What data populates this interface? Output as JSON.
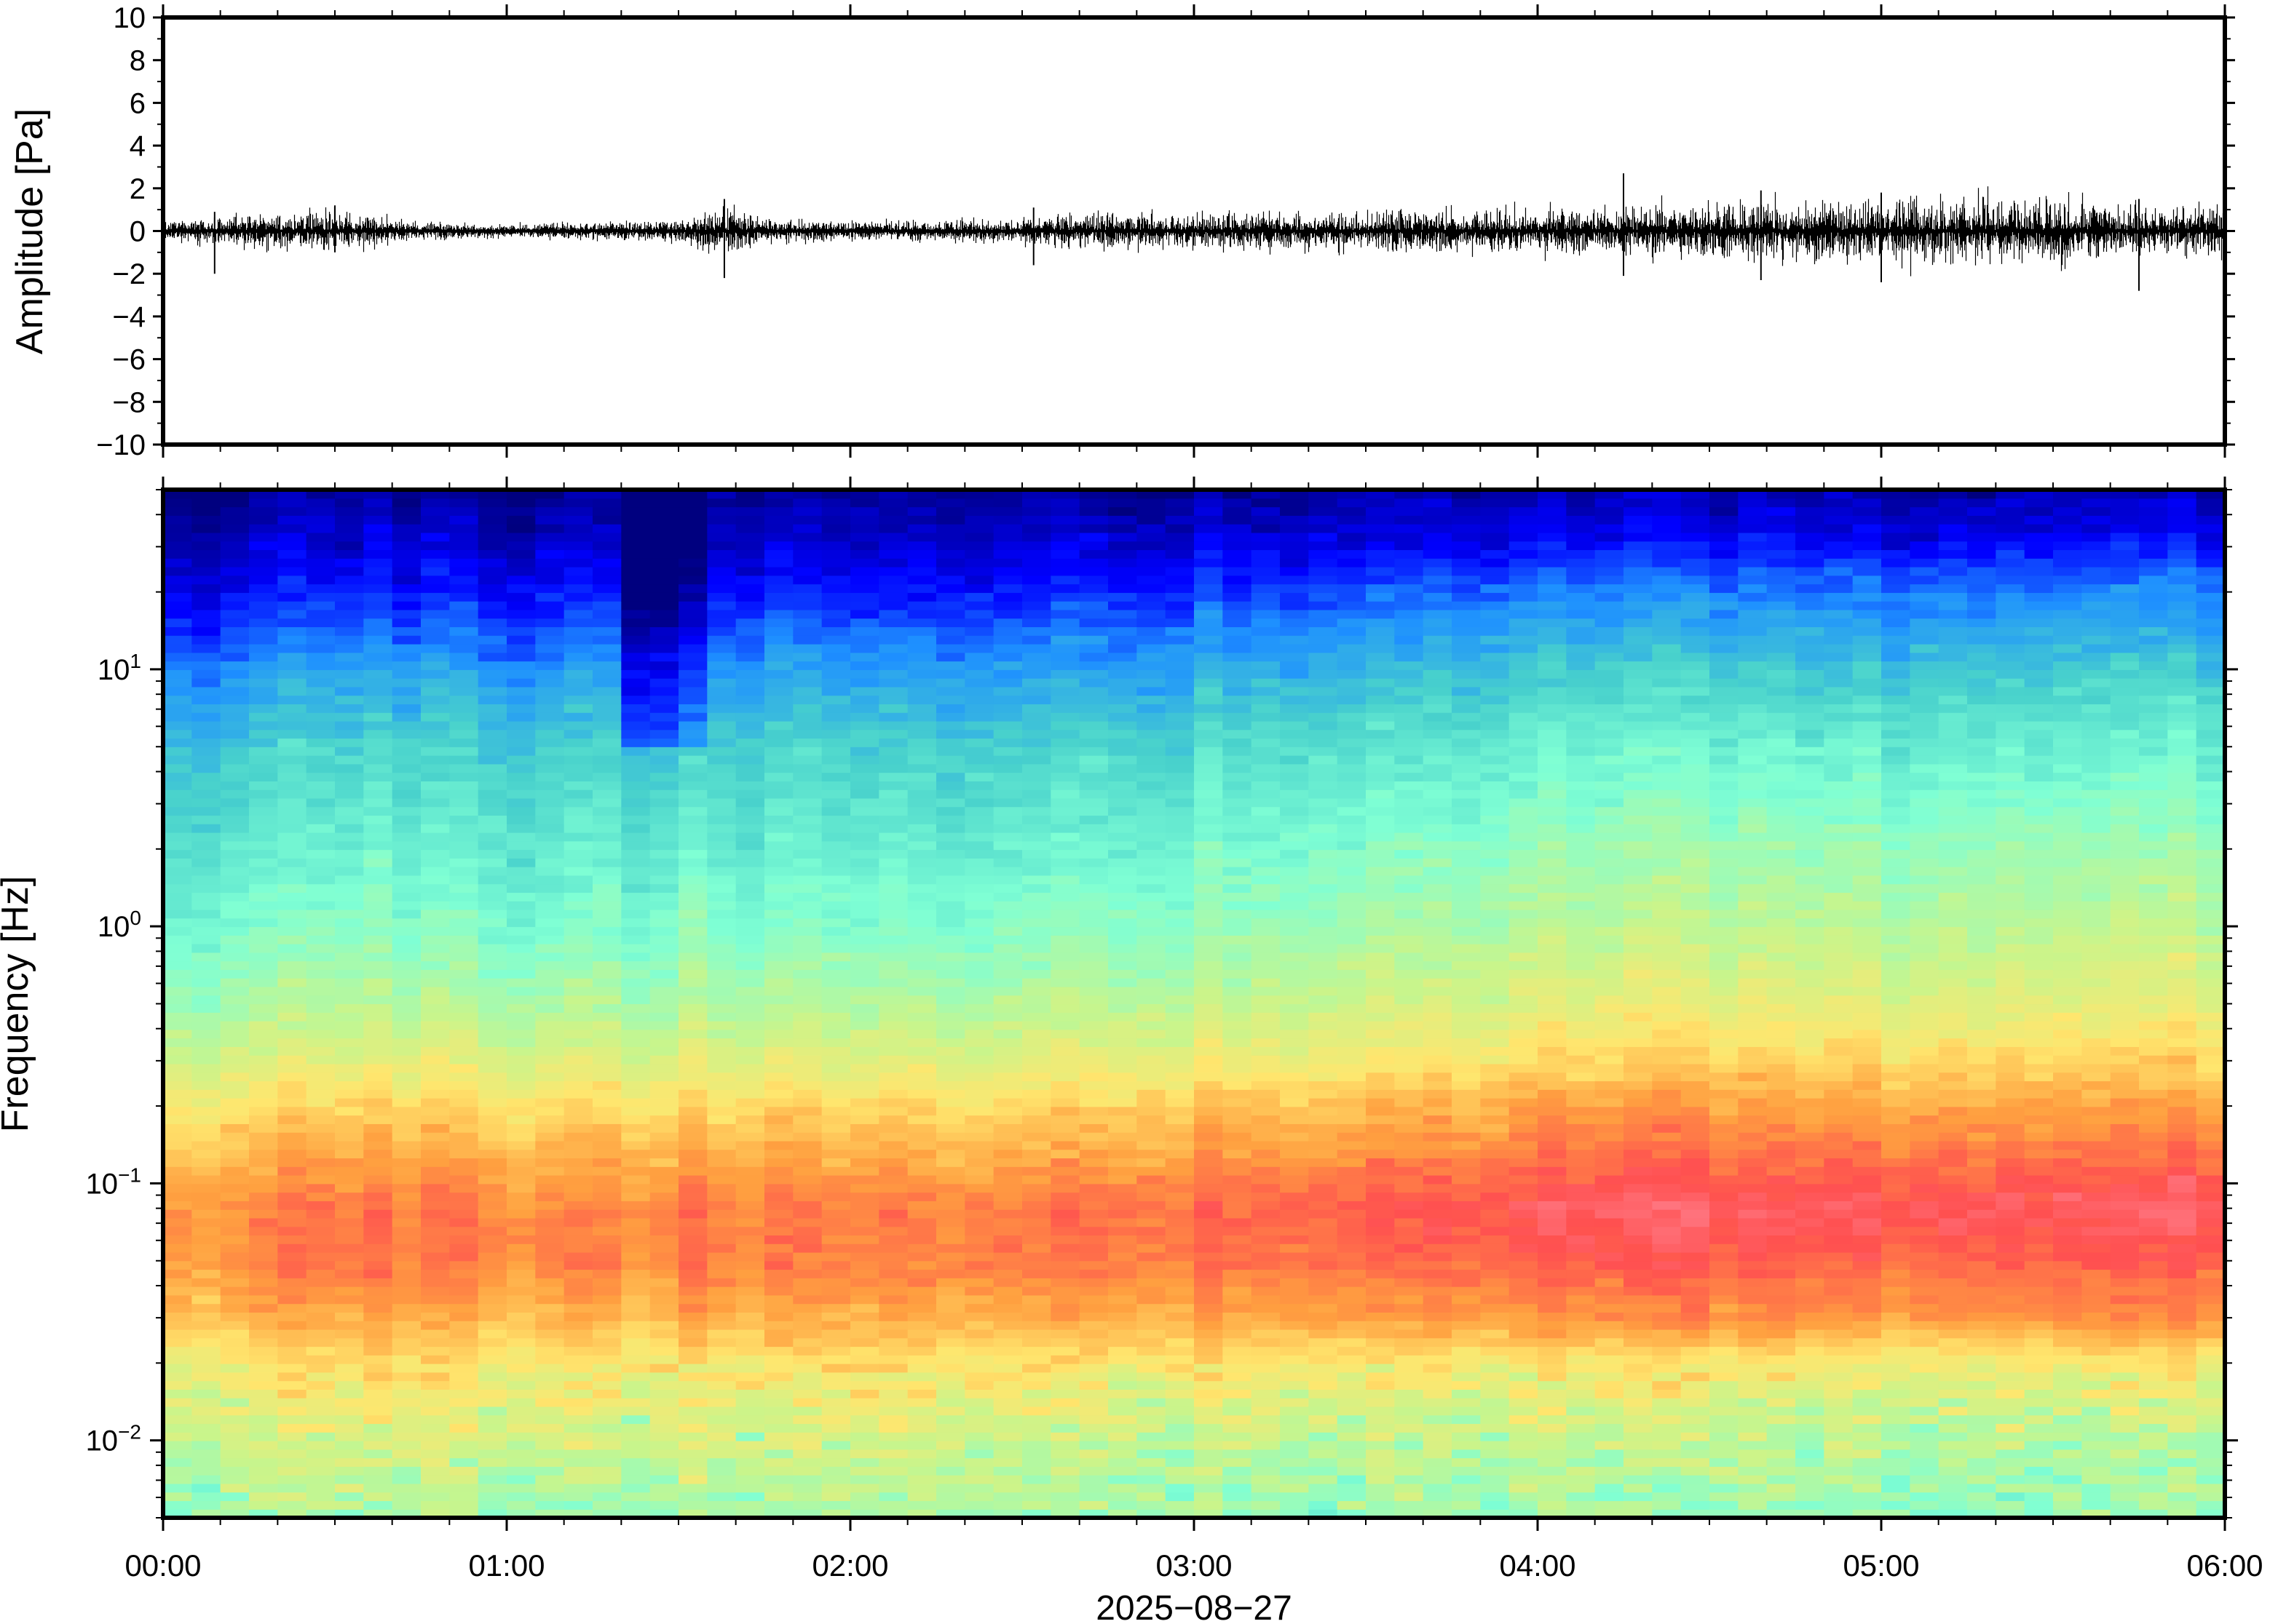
{
  "chart_data": [
    {
      "type": "line",
      "panel": "waveform",
      "ylabel": "Amplitude [Pa]",
      "ylim": [
        -10,
        10
      ],
      "yticks": [
        10,
        8,
        6,
        4,
        2,
        0,
        -2,
        -4,
        -6,
        -8,
        -10
      ],
      "ytick_labels": [
        "10",
        "8",
        "6",
        "4",
        "2",
        "0",
        "−2",
        "−4",
        "−6",
        "−8",
        "−10"
      ],
      "xlim": [
        "00:00",
        "06:00"
      ],
      "envelope": {
        "time": [
          "00:00",
          "00:15",
          "00:30",
          "00:45",
          "01:00",
          "01:15",
          "01:30",
          "01:40",
          "01:45",
          "02:00",
          "02:15",
          "02:30",
          "02:40",
          "02:45",
          "03:00",
          "03:15",
          "03:30",
          "03:45",
          "04:00",
          "04:15",
          "04:30",
          "04:45",
          "05:00",
          "05:15",
          "05:30",
          "05:45",
          "06:00"
        ],
        "peak_amplitude": [
          0.4,
          0.8,
          1.0,
          0.4,
          0.3,
          0.4,
          0.5,
          1.5,
          0.5,
          0.5,
          0.5,
          0.6,
          0.9,
          0.9,
          0.9,
          1.0,
          1.0,
          1.1,
          1.1,
          1.3,
          1.5,
          1.6,
          1.6,
          1.6,
          1.6,
          1.4,
          1.2
        ],
        "spikes": [
          {
            "time": "00:09",
            "min": -2.0,
            "max": 0.9
          },
          {
            "time": "00:30",
            "min": -1.0,
            "max": 1.2
          },
          {
            "time": "01:38",
            "min": -2.2,
            "max": 1.5
          },
          {
            "time": "02:32",
            "min": -1.6,
            "max": 1.1
          },
          {
            "time": "04:15",
            "min": -2.1,
            "max": 2.7
          },
          {
            "time": "04:39",
            "min": -2.3,
            "max": 1.9
          },
          {
            "time": "05:00",
            "min": -2.4,
            "max": 1.8
          },
          {
            "time": "05:45",
            "min": -2.8,
            "max": 1.5
          }
        ]
      },
      "color": "#000000"
    },
    {
      "type": "heatmap",
      "panel": "spectrogram",
      "ylabel": "Frequency [Hz]",
      "yscale": "log",
      "ylim": [
        0.005,
        50
      ],
      "yticks": [
        0.01,
        0.1,
        1,
        10
      ],
      "ytick_labels": [
        {
          "base": "10",
          "exp": "−2"
        },
        {
          "base": "10",
          "exp": "−1"
        },
        {
          "base": "10",
          "exp": "0"
        },
        {
          "base": "10",
          "exp": "1"
        }
      ],
      "xlabel": "2025−08−27",
      "xticks": [
        "00:00",
        "01:00",
        "02:00",
        "03:00",
        "04:00",
        "05:00",
        "06:00"
      ],
      "xlim": [
        "00:00",
        "06:00"
      ],
      "colormap": "jet",
      "colormap_stops": [
        "#00007f",
        "#0000ff",
        "#1e90ff",
        "#48d1cc",
        "#7fffd4",
        "#c8f58c",
        "#ffe66e",
        "#ffa040",
        "#ff5050",
        "#ff8a9a"
      ],
      "time_segments": 72,
      "relative_power_profile": {
        "note_values": "relative power level 0..1 by frequency",
        "frequency_hz": [
          0.005,
          0.008,
          0.012,
          0.02,
          0.03,
          0.05,
          0.08,
          0.12,
          0.2,
          0.3,
          0.5,
          1,
          2,
          5,
          10,
          20,
          35,
          50
        ],
        "level_early": [
          0.5,
          0.55,
          0.6,
          0.66,
          0.75,
          0.82,
          0.82,
          0.76,
          0.68,
          0.6,
          0.52,
          0.45,
          0.4,
          0.33,
          0.24,
          0.12,
          0.05,
          0.02
        ],
        "level_late": [
          0.5,
          0.52,
          0.57,
          0.66,
          0.8,
          0.88,
          0.93,
          0.86,
          0.78,
          0.7,
          0.62,
          0.55,
          0.5,
          0.42,
          0.33,
          0.22,
          0.1,
          0.05
        ]
      }
    }
  ]
}
